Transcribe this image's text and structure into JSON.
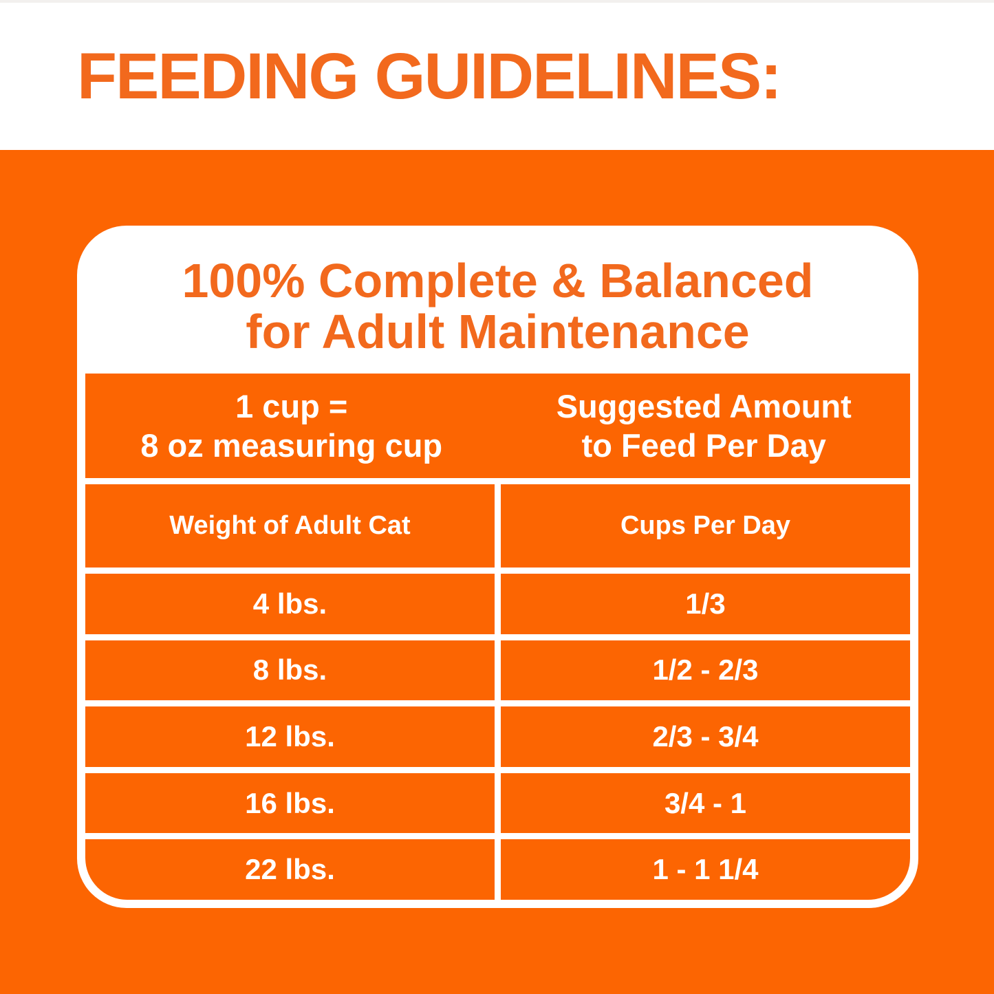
{
  "page_title": "FEEDING GUIDELINES:",
  "colors": {
    "background_orange": "#FC6502",
    "heading_orange": "#F2691D",
    "table_text_white": "#FFFFFF",
    "card_white": "#FFFFFF"
  },
  "card": {
    "heading_line1": "100% Complete & Balanced",
    "heading_line2": "for Adult Maintenance",
    "table": {
      "measure_note": {
        "left_line1": "1 cup =",
        "left_line2": "8 oz measuring cup",
        "right_line1": "Suggested Amount",
        "right_line2": "to Feed Per Day"
      },
      "column_headers": {
        "weight": "Weight of Adult Cat",
        "cups": "Cups Per Day"
      },
      "rows": [
        {
          "weight": "4 lbs.",
          "cups": "1/3"
        },
        {
          "weight": "8 lbs.",
          "cups": "1/2 - 2/3"
        },
        {
          "weight": "12 lbs.",
          "cups": "2/3 - 3/4"
        },
        {
          "weight": "16 lbs.",
          "cups": "3/4 - 1"
        },
        {
          "weight": "22 lbs.",
          "cups": "1 - 1 1/4"
        }
      ]
    }
  }
}
